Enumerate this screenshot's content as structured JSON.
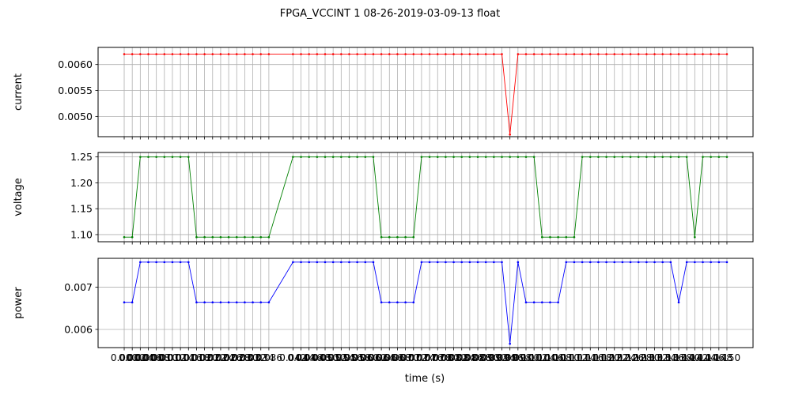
{
  "chart_data": {
    "type": "line",
    "title": "FPGA_VCCINT   1   08-26-2019-03-09-13   float",
    "xlabel": "time (s)",
    "grid": true,
    "shared_x": true,
    "x_tick_labels_visible": "bottom-panel-only",
    "xlim": [
      -0.0065,
      0.1565
    ],
    "x": [
      0.0,
      0.002,
      0.004,
      0.006,
      0.008,
      0.01,
      0.012,
      0.014,
      0.016,
      0.018,
      0.02,
      0.022,
      0.024,
      0.026,
      0.028,
      0.03,
      0.032,
      0.034,
      0.036,
      0.042,
      0.044,
      0.046,
      0.048,
      0.05,
      0.052,
      0.054,
      0.056,
      0.058,
      0.06,
      0.062,
      0.064,
      0.066,
      0.068,
      0.07,
      0.072,
      0.074,
      0.076,
      0.078,
      0.08,
      0.082,
      0.084,
      0.086,
      0.088,
      0.09,
      0.092,
      0.094,
      0.096,
      0.098,
      0.1,
      0.102,
      0.104,
      0.106,
      0.108,
      0.11,
      0.112,
      0.114,
      0.116,
      0.118,
      0.12,
      0.122,
      0.124,
      0.126,
      0.128,
      0.13,
      0.132,
      0.134,
      0.136,
      0.138,
      0.14,
      0.142,
      0.144,
      0.146,
      0.148,
      0.15
    ],
    "x_tick_labels": [
      "0.000",
      "0.002",
      "0.004",
      "0.006",
      "0.008",
      "0.010",
      "0.012",
      "0.014",
      "0.016",
      "0.018",
      "0.020",
      "0.022",
      "0.024",
      "0.026",
      "0.028",
      "0.030",
      "0.032",
      "0.034",
      "0.036",
      "0.042",
      "0.044",
      "0.046",
      "0.048",
      "0.050",
      "0.052",
      "0.054",
      "0.056",
      "0.058",
      "0.060",
      "0.062",
      "0.064",
      "0.066",
      "0.068",
      "0.070",
      "0.072",
      "0.074",
      "0.076",
      "0.078",
      "0.080",
      "0.082",
      "0.084",
      "0.086",
      "0.088",
      "0.090",
      "0.092",
      "0.094",
      "0.096",
      "0.098",
      "0.100",
      "0.102",
      "0.104",
      "0.106",
      "0.108",
      "0.110",
      "0.112",
      "0.114",
      "0.116",
      "0.118",
      "0.120",
      "0.122",
      "0.124",
      "0.126",
      "0.128",
      "0.130",
      "0.132",
      "0.134",
      "0.136",
      "0.138",
      "0.140",
      "0.142",
      "0.144",
      "0.146",
      "0.148",
      "0.150"
    ],
    "panels": [
      {
        "name": "current",
        "ylabel": "current",
        "color": "#ff0000",
        "ylim": [
          0.00461,
          0.00633
        ],
        "yticks": [
          0.005,
          0.0055,
          0.006
        ],
        "ytick_labels": [
          "0.0050",
          "0.0055",
          "0.0060"
        ],
        "values": [
          0.0062,
          0.0062,
          0.0062,
          0.0062,
          0.0062,
          0.0062,
          0.0062,
          0.0062,
          0.0062,
          0.0062,
          0.0062,
          0.0062,
          0.0062,
          0.0062,
          0.0062,
          0.0062,
          0.0062,
          0.0062,
          0.0062,
          0.0062,
          0.0062,
          0.0062,
          0.0062,
          0.0062,
          0.0062,
          0.0062,
          0.0062,
          0.0062,
          0.0062,
          0.0062,
          0.0062,
          0.0062,
          0.0062,
          0.0062,
          0.0062,
          0.0062,
          0.0062,
          0.0062,
          0.0062,
          0.0062,
          0.0062,
          0.0062,
          0.0062,
          0.0062,
          0.0062,
          0.0062,
          0.00465,
          0.0062,
          0.0062,
          0.0062,
          0.0062,
          0.0062,
          0.0062,
          0.0062,
          0.0062,
          0.0062,
          0.0062,
          0.0062,
          0.0062,
          0.0062,
          0.0062,
          0.0062,
          0.0062,
          0.0062,
          0.0062,
          0.0062,
          0.0062,
          0.0062,
          0.0062,
          0.0062,
          0.0062,
          0.0062,
          0.0062,
          0.0062
        ]
      },
      {
        "name": "voltage",
        "ylabel": "voltage",
        "color": "#008000",
        "ylim": [
          1.0862,
          1.2586
        ],
        "yticks": [
          1.1,
          1.15,
          1.2,
          1.25
        ],
        "ytick_labels": [
          "1.10",
          "1.15",
          "1.20",
          "1.25"
        ],
        "values": [
          1.095,
          1.095,
          1.25,
          1.25,
          1.25,
          1.25,
          1.25,
          1.25,
          1.25,
          1.095,
          1.095,
          1.095,
          1.095,
          1.095,
          1.095,
          1.095,
          1.095,
          1.095,
          1.095,
          1.25,
          1.25,
          1.25,
          1.25,
          1.25,
          1.25,
          1.25,
          1.25,
          1.25,
          1.25,
          1.25,
          1.095,
          1.095,
          1.095,
          1.095,
          1.095,
          1.25,
          1.25,
          1.25,
          1.25,
          1.25,
          1.25,
          1.25,
          1.25,
          1.25,
          1.25,
          1.25,
          1.25,
          1.25,
          1.25,
          1.25,
          1.095,
          1.095,
          1.095,
          1.095,
          1.095,
          1.25,
          1.25,
          1.25,
          1.25,
          1.25,
          1.25,
          1.25,
          1.25,
          1.25,
          1.25,
          1.25,
          1.25,
          1.25,
          1.25,
          1.095,
          1.25,
          1.25,
          1.25,
          1.25
        ]
      },
      {
        "name": "power",
        "ylabel": "power",
        "color": "#0000ff",
        "ylim": [
          0.00557,
          0.00768
        ],
        "yticks": [
          0.006,
          0.007
        ],
        "ytick_labels": [
          "0.006",
          "0.007"
        ],
        "values": [
          0.00664,
          0.00664,
          0.00759,
          0.00759,
          0.00759,
          0.00759,
          0.00759,
          0.00759,
          0.00759,
          0.00664,
          0.00664,
          0.00664,
          0.00664,
          0.00664,
          0.00664,
          0.00664,
          0.00664,
          0.00664,
          0.00664,
          0.00759,
          0.00759,
          0.00759,
          0.00759,
          0.00759,
          0.00759,
          0.00759,
          0.00759,
          0.00759,
          0.00759,
          0.00759,
          0.00664,
          0.00664,
          0.00664,
          0.00664,
          0.00664,
          0.00759,
          0.00759,
          0.00759,
          0.00759,
          0.00759,
          0.00759,
          0.00759,
          0.00759,
          0.00759,
          0.00759,
          0.00759,
          0.00566,
          0.00759,
          0.00664,
          0.00664,
          0.00664,
          0.00664,
          0.00664,
          0.00759,
          0.00759,
          0.00759,
          0.00759,
          0.00759,
          0.00759,
          0.00759,
          0.00759,
          0.00759,
          0.00759,
          0.00759,
          0.00759,
          0.00759,
          0.00759,
          0.00664,
          0.00759,
          0.00759,
          0.00759,
          0.00759,
          0.00759,
          0.00759
        ]
      }
    ]
  }
}
